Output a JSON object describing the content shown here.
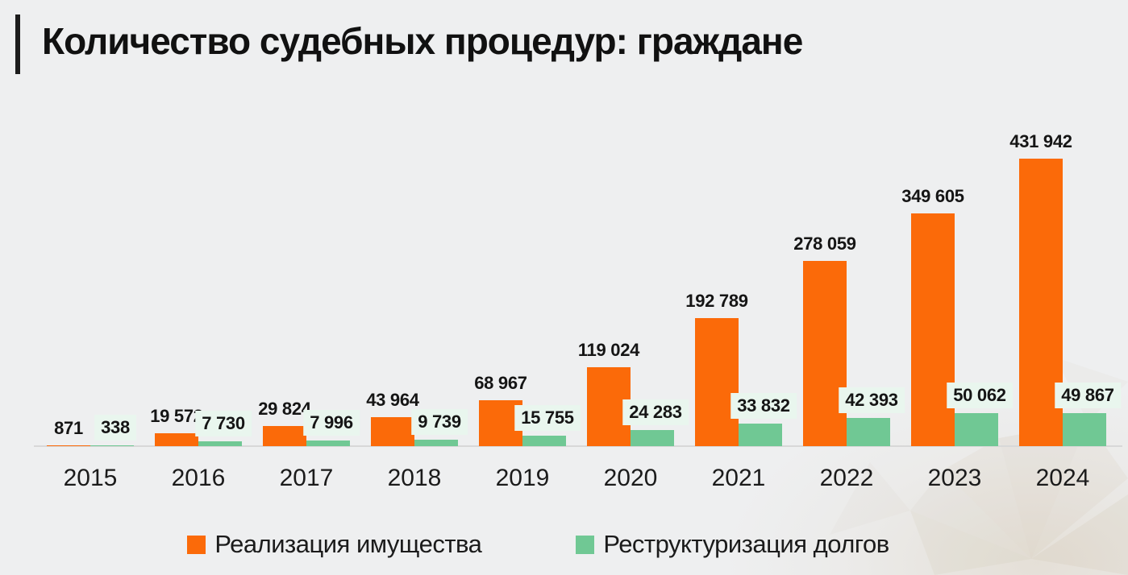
{
  "page": {
    "background": "#EEEFF0"
  },
  "header": {
    "title": "Количество судебных процедур: граждане",
    "accent_color": "#1C1C1C"
  },
  "legend": {
    "items": [
      {
        "label": "Реализация имущества",
        "color": "#FB6A09"
      },
      {
        "label": "Реструктуризация долгов",
        "color": "#70C894"
      }
    ]
  },
  "chart_data": {
    "type": "bar",
    "title": "Количество судебных процедур: граждане",
    "categories": [
      "2015",
      "2016",
      "2017",
      "2018",
      "2019",
      "2020",
      "2021",
      "2022",
      "2023",
      "2024"
    ],
    "series": [
      {
        "name": "Реализация имущества",
        "color": "#FB6A09",
        "values": [
          871,
          19572,
          29824,
          43964,
          68967,
          119024,
          192789,
          278059,
          349605,
          431942
        ],
        "labels": [
          "871",
          "19 572",
          "29 824",
          "43 964",
          "68 967",
          "119 024",
          "192 789",
          "278 059",
          "349 605",
          "431 942"
        ]
      },
      {
        "name": "Реструктуризация долгов",
        "color": "#70C894",
        "label_bg": "#E9F6EE",
        "values": [
          338,
          7730,
          7996,
          9739,
          15755,
          24283,
          33832,
          42393,
          50062,
          49867
        ],
        "labels": [
          "338",
          "7 730",
          "7 996",
          "9 739",
          "15 755",
          "24 283",
          "33 832",
          "42 393",
          "50 062",
          "49 867"
        ]
      }
    ],
    "xlabel": "",
    "ylabel": "",
    "ylim": [
      0,
      431942
    ],
    "grid": false,
    "value_labels": true,
    "legend_position": "bottom",
    "axis_color": "#D8D8D8",
    "background_color": "#EEEFF0",
    "text_color": "#1B1B1B"
  }
}
